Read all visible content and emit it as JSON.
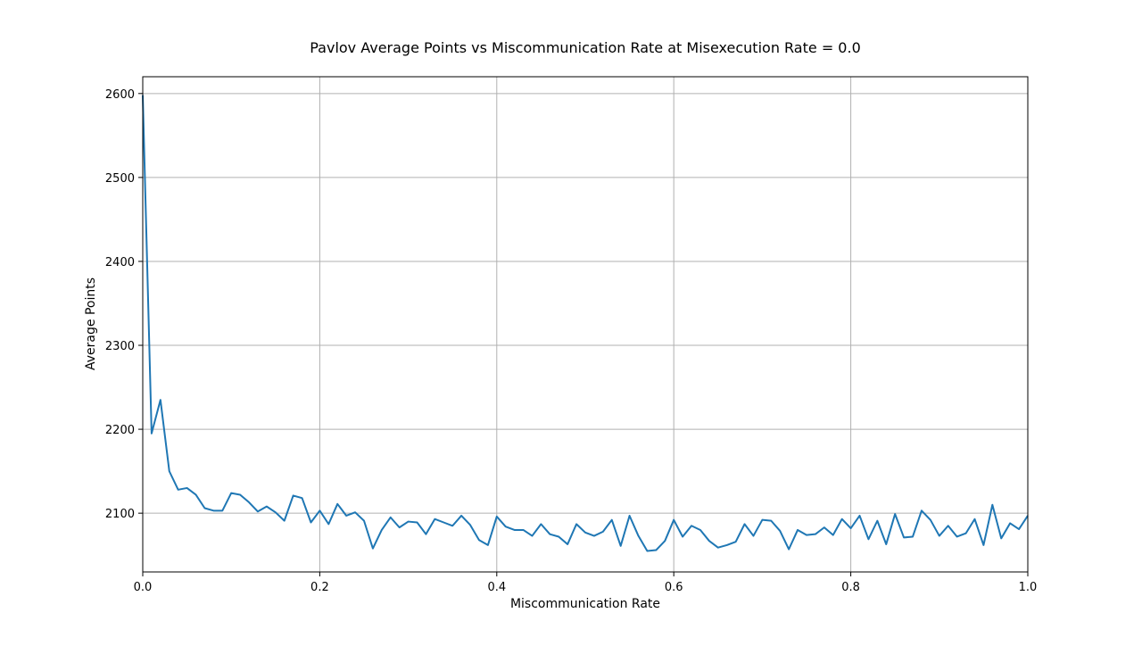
{
  "chart_data": {
    "type": "line",
    "title": "Pavlov Average Points vs Miscommunication Rate at Misexecution Rate = 0.0",
    "xlabel": "Miscommunication Rate",
    "ylabel": "Average Points",
    "xlim": [
      0.0,
      1.0
    ],
    "ylim": [
      2030,
      2620
    ],
    "grid": true,
    "x_ticks": [
      {
        "value": 0.0,
        "label": "0.0"
      },
      {
        "value": 0.2,
        "label": "0.2"
      },
      {
        "value": 0.4,
        "label": "0.4"
      },
      {
        "value": 0.6,
        "label": "0.6"
      },
      {
        "value": 0.8,
        "label": "0.8"
      },
      {
        "value": 1.0,
        "label": "1.0"
      }
    ],
    "y_ticks": [
      {
        "value": 2100,
        "label": "2100"
      },
      {
        "value": 2200,
        "label": "2200"
      },
      {
        "value": 2300,
        "label": "2300"
      },
      {
        "value": 2400,
        "label": "2400"
      },
      {
        "value": 2500,
        "label": "2500"
      },
      {
        "value": 2600,
        "label": "2600"
      }
    ],
    "series": [
      {
        "color": "#1f77b4",
        "x": [
          0.0,
          0.01,
          0.02,
          0.03,
          0.04,
          0.05,
          0.06,
          0.07,
          0.08,
          0.09,
          0.1,
          0.11,
          0.12,
          0.13,
          0.14,
          0.15,
          0.16,
          0.17,
          0.18,
          0.19,
          0.2,
          0.21,
          0.22,
          0.23,
          0.24,
          0.25,
          0.26,
          0.27,
          0.28,
          0.29,
          0.3,
          0.31,
          0.32,
          0.33,
          0.34,
          0.35,
          0.36,
          0.37,
          0.38,
          0.39,
          0.4,
          0.41,
          0.42,
          0.43,
          0.44,
          0.45,
          0.46,
          0.47,
          0.48,
          0.49,
          0.5,
          0.51,
          0.52,
          0.53,
          0.54,
          0.55,
          0.56,
          0.57,
          0.58,
          0.59,
          0.6,
          0.61,
          0.62,
          0.63,
          0.64,
          0.65,
          0.66,
          0.67,
          0.68,
          0.69,
          0.7,
          0.71,
          0.72,
          0.73,
          0.74,
          0.75,
          0.76,
          0.77,
          0.78,
          0.79,
          0.8,
          0.81,
          0.82,
          0.83,
          0.84,
          0.85,
          0.86,
          0.87,
          0.88,
          0.89,
          0.9,
          0.91,
          0.92,
          0.93,
          0.94,
          0.95,
          0.96,
          0.97,
          0.98,
          0.99,
          1.0
        ],
        "y": [
          2598,
          2195,
          2235,
          2150,
          2128,
          2130,
          2122,
          2106,
          2103,
          2103,
          2124,
          2122,
          2113,
          2102,
          2108,
          2101,
          2091,
          2121,
          2118,
          2089,
          2103,
          2087,
          2111,
          2097,
          2101,
          2091,
          2058,
          2080,
          2095,
          2083,
          2090,
          2089,
          2075,
          2093,
          2089,
          2085,
          2097,
          2086,
          2068,
          2062,
          2096,
          2084,
          2080,
          2080,
          2073,
          2087,
          2075,
          2072,
          2063,
          2087,
          2077,
          2073,
          2078,
          2092,
          2061,
          2097,
          2073,
          2055,
          2056,
          2067,
          2092,
          2072,
          2085,
          2080,
          2067,
          2059,
          2062,
          2066,
          2087,
          2073,
          2092,
          2091,
          2079,
          2057,
          2080,
          2074,
          2075,
          2083,
          2074,
          2093,
          2082,
          2097,
          2069,
          2091,
          2063,
          2099,
          2071,
          2072,
          2103,
          2092,
          2073,
          2085,
          2072,
          2076,
          2093,
          2062,
          2110,
          2070,
          2088,
          2081,
          2097
        ]
      }
    ]
  }
}
